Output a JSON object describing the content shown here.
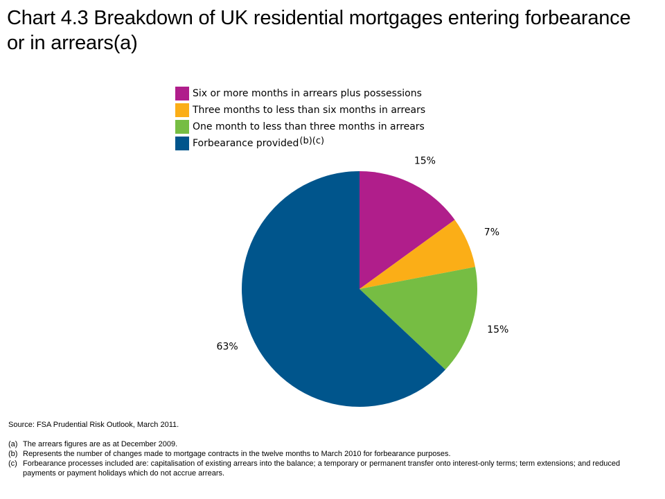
{
  "title": "Chart 4.3  Breakdown of UK residential mortgages entering forbearance or in arrears(a)",
  "chart_data": {
    "type": "pie",
    "title": "Chart 4.3  Breakdown of UK residential mortgages entering forbearance or in arrears(a)",
    "legend_position": "top",
    "slices": [
      {
        "label": "Six or more months in arrears plus possessions",
        "value": 15,
        "display": "15%",
        "color": "#b01e8b"
      },
      {
        "label": "Three months to less than six months in arrears",
        "value": 7,
        "display": "7%",
        "color": "#fbae17"
      },
      {
        "label": "One month to less than three months in arrears",
        "value": 15,
        "display": "15%",
        "color": "#76bd43"
      },
      {
        "label": "Forbearance provided",
        "label_sup": "(b)(c)",
        "value": 63,
        "display": "63%",
        "color": "#00558c"
      }
    ]
  },
  "source": "Source:  FSA Prudential Risk Outlook, March 2011.",
  "notes": [
    {
      "mark": "(a)",
      "text": "The arrears  figures are as at December 2009."
    },
    {
      "mark": "(b)",
      "text": "Represents the number of changes made to mortgage contracts in the twelve months to March 2010  for forbearance purposes."
    },
    {
      "mark": "(c)",
      "text": "Forbearance processes included are:  capitalisation of existing arrears into the balance;  a temporary or permanent transfer onto interest-only terms;  term extensions;  and reduced payments or payment holidays which do not accrue arrears."
    }
  ]
}
